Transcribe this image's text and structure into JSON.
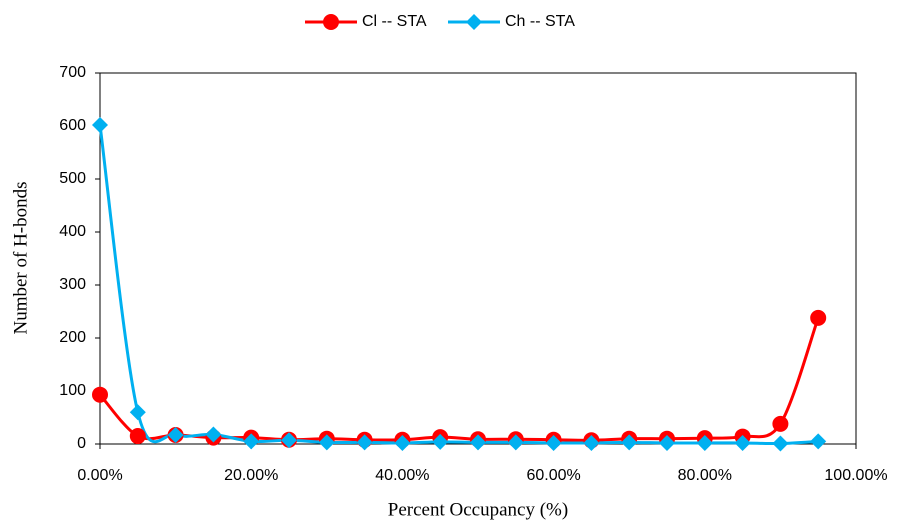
{
  "chart_data": {
    "type": "line",
    "xlabel": "Percent Occupancy (%)",
    "ylabel": "Number of H-bonds",
    "x": [
      0,
      5,
      10,
      15,
      20,
      25,
      30,
      35,
      40,
      45,
      50,
      55,
      60,
      65,
      70,
      75,
      80,
      85,
      90,
      95
    ],
    "series": [
      {
        "name": "Cl -- STA",
        "color": "#ff0000",
        "marker": "circle",
        "values": [
          93,
          15,
          17,
          12,
          12,
          8,
          10,
          8,
          8,
          13,
          9,
          9,
          8,
          7,
          10,
          10,
          11,
          14,
          38,
          238
        ]
      },
      {
        "name": "Ch -- STA",
        "color": "#00b0f0",
        "marker": "diamond",
        "values": [
          602,
          60,
          17,
          18,
          5,
          7,
          3,
          3,
          2,
          4,
          3,
          3,
          2,
          2,
          3,
          2,
          2,
          2,
          1,
          5
        ]
      }
    ],
    "xlim": [
      0,
      100
    ],
    "xticks": [
      {
        "value": 0,
        "label": "0.00%"
      },
      {
        "value": 20,
        "label": "20.00%"
      },
      {
        "value": 40,
        "label": "40.00%"
      },
      {
        "value": 60,
        "label": "60.00%"
      },
      {
        "value": 80,
        "label": "80.00%"
      },
      {
        "value": 100,
        "label": "100.00%"
      }
    ],
    "ylim": [
      0,
      700
    ],
    "yticks": [
      0,
      100,
      200,
      300,
      400,
      500,
      600,
      700
    ],
    "legend": "top"
  }
}
